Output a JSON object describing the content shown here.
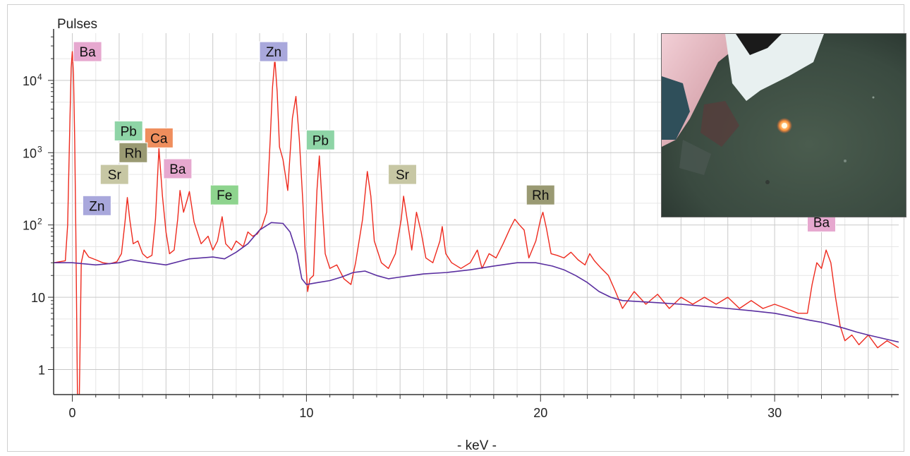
{
  "chart_data": {
    "type": "line",
    "xlabel": "- keV -",
    "ylabel": "Pulses",
    "xlim": [
      -0.8,
      35.3
    ],
    "ylim": [
      0.45,
      45000
    ],
    "y_scale": "log",
    "grid": true,
    "x_ticks": [
      {
        "value": 0,
        "label": "0"
      },
      {
        "value": 10,
        "label": "10"
      },
      {
        "value": 20,
        "label": "20"
      },
      {
        "value": 30,
        "label": "30"
      }
    ],
    "y_ticks": [
      {
        "value": 1,
        "label": "1"
      },
      {
        "value": 10,
        "label": "10",
        "sup": ""
      },
      {
        "value": 100,
        "label": "10",
        "sup": "2"
      },
      {
        "value": 1000,
        "label": "10",
        "sup": "3"
      },
      {
        "value": 10000,
        "label": "10",
        "sup": "4"
      }
    ],
    "series": [
      {
        "color": "#ee2a1e",
        "points": [
          [
            -0.8,
            30
          ],
          [
            -0.3,
            32
          ],
          [
            -0.2,
            100
          ],
          [
            -0.1,
            3000
          ],
          [
            -0.05,
            15000
          ],
          [
            0,
            25000
          ],
          [
            0.05,
            12000
          ],
          [
            0.1,
            1500
          ],
          [
            0.15,
            80
          ],
          [
            0.22,
            0.45
          ],
          [
            0.3,
            0.45
          ],
          [
            0.38,
            30
          ],
          [
            0.5,
            45
          ],
          [
            0.7,
            36
          ],
          [
            1.0,
            33
          ],
          [
            1.3,
            30
          ],
          [
            1.6,
            29
          ],
          [
            1.9,
            31
          ],
          [
            2.1,
            40
          ],
          [
            2.25,
            110
          ],
          [
            2.35,
            240
          ],
          [
            2.45,
            120
          ],
          [
            2.6,
            55
          ],
          [
            2.8,
            60
          ],
          [
            3.0,
            40
          ],
          [
            3.2,
            35
          ],
          [
            3.4,
            38
          ],
          [
            3.55,
            120
          ],
          [
            3.7,
            1150
          ],
          [
            3.85,
            250
          ],
          [
            4.0,
            80
          ],
          [
            4.15,
            40
          ],
          [
            4.35,
            45
          ],
          [
            4.5,
            120
          ],
          [
            4.6,
            300
          ],
          [
            4.75,
            150
          ],
          [
            4.9,
            220
          ],
          [
            5.0,
            290
          ],
          [
            5.2,
            110
          ],
          [
            5.5,
            55
          ],
          [
            5.8,
            70
          ],
          [
            6.0,
            45
          ],
          [
            6.2,
            60
          ],
          [
            6.4,
            130
          ],
          [
            6.55,
            55
          ],
          [
            6.8,
            45
          ],
          [
            7.0,
            60
          ],
          [
            7.3,
            50
          ],
          [
            7.5,
            80
          ],
          [
            7.7,
            70
          ],
          [
            7.9,
            75
          ],
          [
            8.1,
            95
          ],
          [
            8.3,
            150
          ],
          [
            8.45,
            1500
          ],
          [
            8.55,
            8000
          ],
          [
            8.65,
            20000
          ],
          [
            8.75,
            7000
          ],
          [
            8.85,
            1200
          ],
          [
            9.0,
            800
          ],
          [
            9.2,
            300
          ],
          [
            9.4,
            3000
          ],
          [
            9.55,
            6000
          ],
          [
            9.7,
            1500
          ],
          [
            9.85,
            200
          ],
          [
            9.95,
            40
          ],
          [
            10.05,
            12
          ],
          [
            10.15,
            18
          ],
          [
            10.3,
            20
          ],
          [
            10.45,
            300
          ],
          [
            10.55,
            900
          ],
          [
            10.65,
            250
          ],
          [
            10.8,
            40
          ],
          [
            11.0,
            25
          ],
          [
            11.3,
            28
          ],
          [
            11.6,
            18
          ],
          [
            11.9,
            15
          ],
          [
            12.1,
            30
          ],
          [
            12.4,
            120
          ],
          [
            12.6,
            550
          ],
          [
            12.75,
            250
          ],
          [
            12.9,
            60
          ],
          [
            13.2,
            30
          ],
          [
            13.5,
            25
          ],
          [
            13.8,
            40
          ],
          [
            14.05,
            120
          ],
          [
            14.15,
            250
          ],
          [
            14.3,
            120
          ],
          [
            14.5,
            45
          ],
          [
            14.7,
            150
          ],
          [
            14.9,
            80
          ],
          [
            15.1,
            35
          ],
          [
            15.4,
            30
          ],
          [
            15.7,
            60
          ],
          [
            15.8,
            95
          ],
          [
            15.95,
            40
          ],
          [
            16.2,
            30
          ],
          [
            16.6,
            25
          ],
          [
            17.0,
            30
          ],
          [
            17.3,
            45
          ],
          [
            17.5,
            25
          ],
          [
            17.8,
            40
          ],
          [
            18.1,
            35
          ],
          [
            18.4,
            55
          ],
          [
            18.7,
            90
          ],
          [
            18.9,
            120
          ],
          [
            19.1,
            100
          ],
          [
            19.3,
            85
          ],
          [
            19.5,
            35
          ],
          [
            19.8,
            60
          ],
          [
            20.0,
            120
          ],
          [
            20.1,
            150
          ],
          [
            20.25,
            90
          ],
          [
            20.45,
            40
          ],
          [
            20.7,
            38
          ],
          [
            21.0,
            35
          ],
          [
            21.3,
            42
          ],
          [
            21.6,
            33
          ],
          [
            21.9,
            28
          ],
          [
            22.1,
            40
          ],
          [
            22.3,
            32
          ],
          [
            22.6,
            25
          ],
          [
            22.9,
            20
          ],
          [
            23.2,
            12
          ],
          [
            23.5,
            7
          ],
          [
            24.0,
            12
          ],
          [
            24.5,
            8
          ],
          [
            25.0,
            11
          ],
          [
            25.5,
            7
          ],
          [
            26.0,
            10
          ],
          [
            26.5,
            8
          ],
          [
            27.0,
            10
          ],
          [
            27.5,
            8
          ],
          [
            28.0,
            10
          ],
          [
            28.5,
            7
          ],
          [
            29.0,
            9
          ],
          [
            29.5,
            7
          ],
          [
            30.0,
            8
          ],
          [
            30.5,
            7
          ],
          [
            31.0,
            6
          ],
          [
            31.4,
            6
          ],
          [
            31.6,
            15
          ],
          [
            31.8,
            30
          ],
          [
            32.0,
            25
          ],
          [
            32.2,
            45
          ],
          [
            32.4,
            30
          ],
          [
            32.6,
            10
          ],
          [
            32.8,
            4
          ],
          [
            33.0,
            2.5
          ],
          [
            33.3,
            3
          ],
          [
            33.6,
            2.2
          ],
          [
            34.0,
            3
          ],
          [
            34.4,
            2
          ],
          [
            34.8,
            2.5
          ],
          [
            35.3,
            2
          ]
        ]
      },
      {
        "color": "#5a2fa0",
        "points": [
          [
            -0.8,
            30
          ],
          [
            0,
            30
          ],
          [
            1,
            28
          ],
          [
            2,
            30
          ],
          [
            2.5,
            33
          ],
          [
            3,
            31
          ],
          [
            4,
            28
          ],
          [
            5,
            34
          ],
          [
            6,
            36
          ],
          [
            6.5,
            34
          ],
          [
            7,
            42
          ],
          [
            7.5,
            55
          ],
          [
            8,
            85
          ],
          [
            8.5,
            108
          ],
          [
            9,
            105
          ],
          [
            9.3,
            80
          ],
          [
            9.6,
            40
          ],
          [
            9.8,
            18
          ],
          [
            10,
            15
          ],
          [
            10.5,
            16
          ],
          [
            11,
            17
          ],
          [
            11.5,
            19
          ],
          [
            12,
            22
          ],
          [
            12.5,
            23
          ],
          [
            13,
            20
          ],
          [
            13.5,
            18
          ],
          [
            14,
            19
          ],
          [
            14.5,
            20
          ],
          [
            15,
            21
          ],
          [
            16,
            22
          ],
          [
            17,
            24
          ],
          [
            18,
            27
          ],
          [
            19,
            30
          ],
          [
            19.8,
            30
          ],
          [
            20.5,
            27
          ],
          [
            21,
            24
          ],
          [
            21.5,
            20
          ],
          [
            22,
            16
          ],
          [
            22.5,
            12
          ],
          [
            23,
            10
          ],
          [
            23.5,
            9
          ],
          [
            24,
            8.8
          ],
          [
            25,
            8.4
          ],
          [
            26,
            8
          ],
          [
            27,
            7.5
          ],
          [
            28,
            7
          ],
          [
            29,
            6.5
          ],
          [
            30,
            6
          ],
          [
            31,
            5.2
          ],
          [
            31.5,
            4.8
          ],
          [
            32,
            4.5
          ],
          [
            32.5,
            4.1
          ],
          [
            33,
            3.7
          ],
          [
            33.5,
            3.3
          ],
          [
            34,
            3
          ],
          [
            35.3,
            2.4
          ]
        ]
      }
    ],
    "labels": [
      {
        "text": "Ba",
        "x": 0.65,
        "y": 25000,
        "bg": "#e6a8cf"
      },
      {
        "text": "Zn",
        "x": 8.6,
        "y": 25000,
        "bg": "#a9a8dc"
      },
      {
        "text": "Pb",
        "x": 2.4,
        "y": 2000,
        "bg": "#8ed4a6"
      },
      {
        "text": "Ca",
        "x": 3.7,
        "y": 1600,
        "bg": "#ef8e5d"
      },
      {
        "text": "Rh",
        "x": 2.6,
        "y": 1000,
        "bg": "#9a9a73"
      },
      {
        "text": "Ba",
        "x": 4.5,
        "y": 600,
        "bg": "#e6a8cf"
      },
      {
        "text": "Sr",
        "x": 1.8,
        "y": 500,
        "bg": "#c7c7a4"
      },
      {
        "text": "Pb",
        "x": 10.6,
        "y": 1500,
        "bg": "#8ed4a6"
      },
      {
        "text": "Fe",
        "x": 6.5,
        "y": 260,
        "bg": "#8ed48e"
      },
      {
        "text": "Sr",
        "x": 14.1,
        "y": 500,
        "bg": "#c7c7a4"
      },
      {
        "text": "Rh",
        "x": 20.0,
        "y": 260,
        "bg": "#9a9a73"
      },
      {
        "text": "Zn",
        "x": 1.05,
        "y": 185,
        "bg": "#a9a8dc"
      },
      {
        "text": "Ba",
        "x": 32.0,
        "y": 110,
        "bg": "#e6a8cf"
      }
    ],
    "colors": {
      "spectrum": "#ee2a1e",
      "background": "#5a2fa0",
      "grid_major": "#c9c9c9",
      "grid_minor": "#e6e6e6"
    }
  },
  "inset": {
    "icon": "sample-photo-icon"
  }
}
